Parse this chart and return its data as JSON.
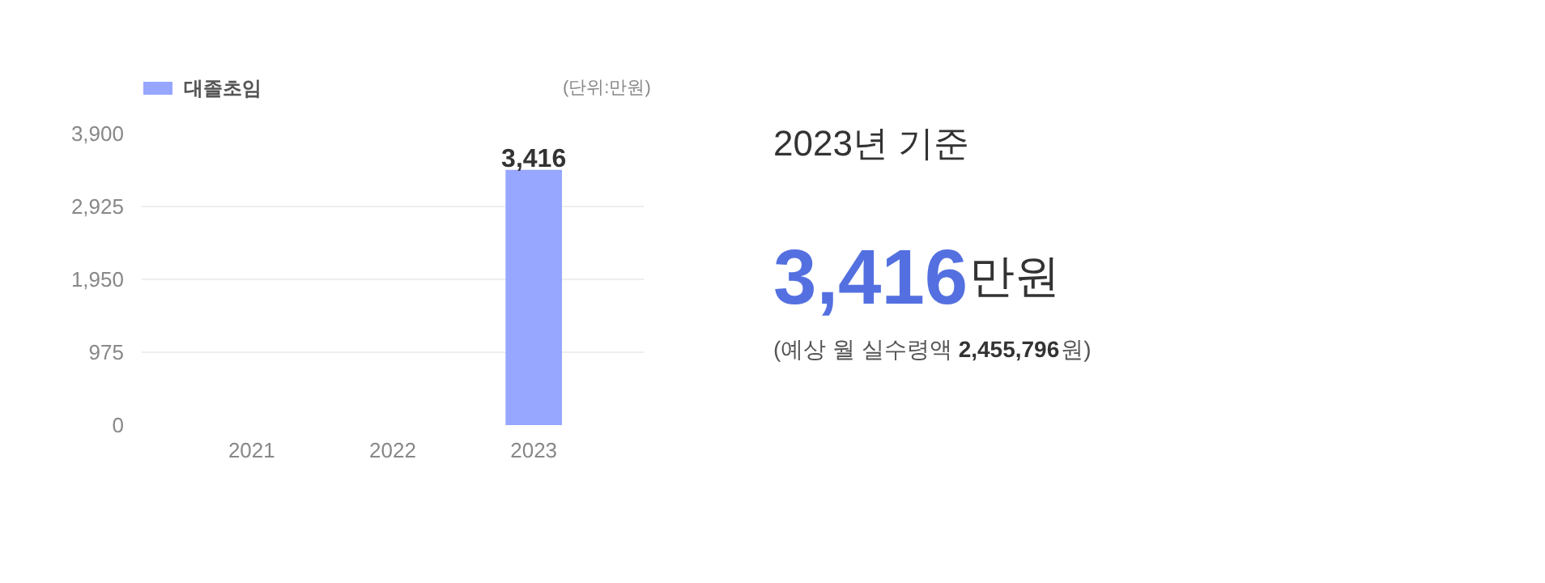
{
  "chart_data": [
    {
      "type": "bar",
      "categories": [
        "2021",
        "2022",
        "2023"
      ],
      "series": [
        {
          "name": "대졸초임",
          "color": "#97a6ff",
          "values": [
            null,
            null,
            3416
          ]
        }
      ],
      "value_labels": [
        null,
        null,
        "3,416"
      ],
      "ylim": [
        0,
        3900
      ],
      "yticks": [
        0,
        975,
        {
          "value": 1950,
          "label": "1,950"
        },
        {
          "value": 2925,
          "label": "2,925"
        },
        {
          "value": 3900,
          "label": "3,900"
        }
      ],
      "grid": "y",
      "legend": "top left",
      "annotations": [
        "(단위:만원)"
      ]
    },
    {
      "type": "other",
      "title": "2023년 기준",
      "annotations": [
        "3,416만원",
        "(예상 월 실수령액 2,455,796원)"
      ]
    }
  ]
}
